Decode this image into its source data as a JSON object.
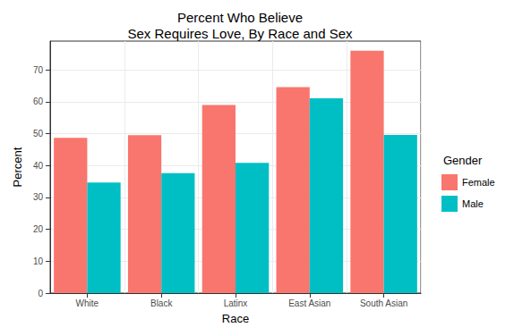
{
  "chart_data": {
    "type": "bar",
    "title": "Percent Who Believe\nSex Requires Love, By Race and Sex",
    "x_label": "Race",
    "y_label": "Percent",
    "legend_title": "Gender",
    "categories": [
      "White",
      "Black",
      "Latinx",
      "East Asian",
      "South Asian"
    ],
    "series": [
      {
        "name": "Female",
        "color": "#F8766D",
        "values": [
          48.7,
          49.5,
          59.0,
          64.6,
          76.0
        ]
      },
      {
        "name": "Male",
        "color": "#00BFC4",
        "values": [
          34.7,
          37.6,
          40.8,
          61.1,
          49.6
        ]
      }
    ],
    "ylim": [
      0,
      79
    ],
    "yticks": [
      0,
      10,
      20,
      30,
      40,
      50,
      60,
      70
    ],
    "grid": true,
    "legend": "right"
  }
}
